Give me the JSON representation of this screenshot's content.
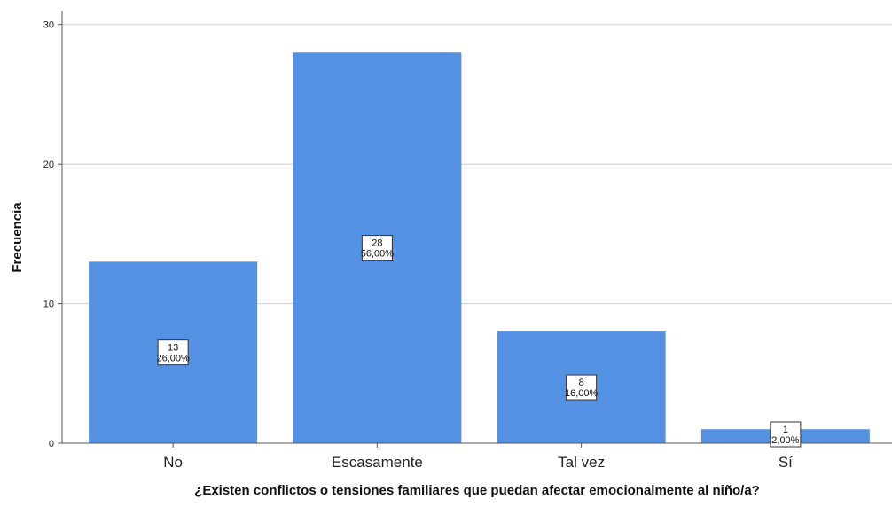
{
  "chart_data": {
    "type": "bar",
    "categories": [
      "No",
      "Escasamente",
      "Tal vez",
      "Sí"
    ],
    "values": [
      13,
      28,
      8,
      1
    ],
    "percent_labels": [
      "26,00%",
      "56,00%",
      "16,00%",
      "2,00%"
    ],
    "xlabel": "¿Existen conflictos o tensiones familiares que puedan afectar emocionalmente al niño/a?",
    "ylabel": "Frecuencia",
    "ylim": [
      0,
      31
    ],
    "yticks": [
      0,
      10,
      20,
      30
    ],
    "grid": true,
    "colors": {
      "bar": "#5591E2",
      "grid": "#cfcfcf",
      "axis": "#555555"
    }
  }
}
